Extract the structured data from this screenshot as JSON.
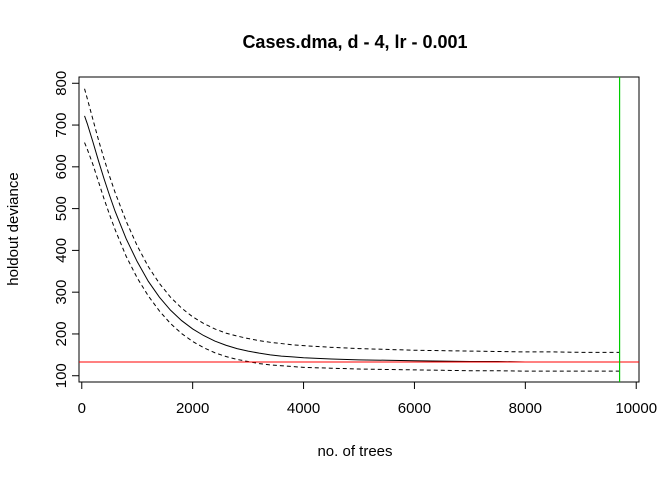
{
  "chart_data": {
    "type": "line",
    "title": "Cases.dma, d - 4, lr - 0.001",
    "xlabel": "no. of trees",
    "ylabel": "holdout deviance",
    "xlim": [
      -50,
      10050
    ],
    "ylim": [
      85,
      815
    ],
    "xticks": [
      0,
      2000,
      4000,
      6000,
      8000,
      10000
    ],
    "yticks": [
      100,
      200,
      300,
      400,
      500,
      600,
      700,
      800
    ],
    "grid": false,
    "legend": "none",
    "x": [
      50,
      100,
      200,
      300,
      400,
      500,
      600,
      800,
      1000,
      1200,
      1400,
      1600,
      1800,
      2000,
      2200,
      2400,
      2600,
      2800,
      3000,
      3200,
      3400,
      3600,
      3800,
      4000,
      4500,
      5000,
      5500,
      6000,
      6500,
      7000,
      7500,
      8000,
      8500,
      9000,
      9700
    ],
    "series": [
      {
        "style": "solid",
        "color": "#000000",
        "values": [
          722,
          703,
          660,
          615,
          572,
          532,
          494,
          428,
          373,
          326,
          288,
          257,
          232,
          212,
          196,
          183,
          173,
          165,
          159,
          154,
          150,
          147,
          145,
          143,
          140,
          138,
          137,
          136,
          135,
          134,
          134,
          133,
          133,
          133,
          133
        ]
      },
      {
        "style": "dashed",
        "color": "#000000",
        "values": [
          787,
          763,
          714,
          665,
          620,
          578,
          539,
          470,
          411,
          361,
          321,
          288,
          262,
          241,
          225,
          212,
          202,
          195,
          189,
          184,
          180,
          177,
          174,
          172,
          168,
          165,
          163,
          161,
          160,
          159,
          158,
          157,
          157,
          156,
          156
        ]
      },
      {
        "style": "dashed",
        "color": "#000000",
        "values": [
          658,
          642,
          606,
          565,
          524,
          486,
          450,
          386,
          334,
          291,
          255,
          225,
          201,
          182,
          167,
          155,
          146,
          139,
          134,
          129,
          126,
          124,
          122,
          120,
          118,
          116,
          115,
          114,
          113,
          112,
          112,
          111,
          111,
          111,
          111
        ]
      }
    ],
    "hline": {
      "y": 133,
      "color": "#ff0000"
    },
    "vline": {
      "x": 9700,
      "color": "#00cc00"
    }
  }
}
